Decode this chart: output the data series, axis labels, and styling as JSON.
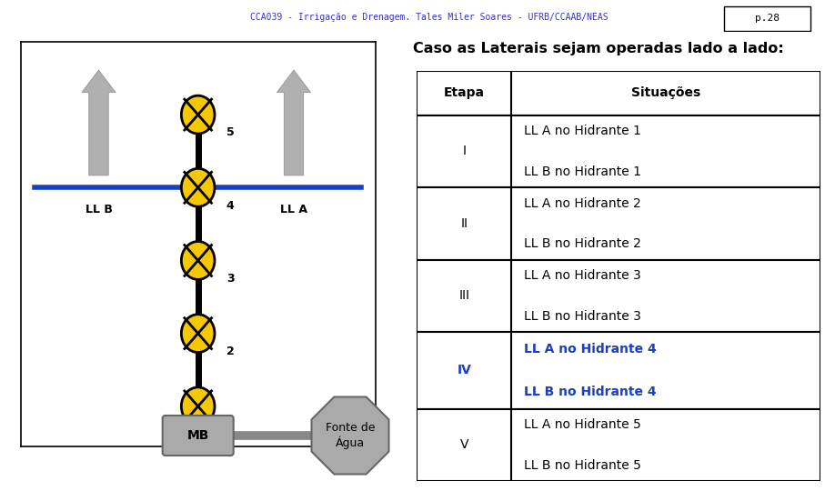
{
  "header_text": "CCA039 - Irrigação e Drenagem. Tales Miler Soares - UFRB/CCAAB/NEAS",
  "page_text": "p.28",
  "title": "Caso as Laterais sejam operadas lado a lado:",
  "background_color": "#ffffff",
  "lateral_color": "#1a3fbf",
  "gray_color": "#888888",
  "mb_box_color": "#aaaaaa",
  "hydrant_fill": "#f5c800",
  "table_rows": [
    {
      "etapa": "Etapa",
      "situacoes": "Situações",
      "header": true,
      "blue": false,
      "bold": false
    },
    {
      "etapa": "I",
      "sit1": "LL A no Hidrante 1",
      "sit2": "LL B no Hidrante 1",
      "bold": false,
      "blue": false
    },
    {
      "etapa": "II",
      "sit1": "LL A no Hidrante 2",
      "sit2": "LL B no Hidrante 2",
      "bold": false,
      "blue": false
    },
    {
      "etapa": "III",
      "sit1": "LL A no Hidrante 3",
      "sit2": "LL B no Hidrante 3",
      "bold": false,
      "blue": false
    },
    {
      "etapa": "IV",
      "sit1": "LL A no Hidrante 4",
      "sit2": "LL B no Hidrante 4",
      "bold": true,
      "blue": true
    },
    {
      "etapa": "V",
      "sit1": "LL A no Hidrante 5",
      "sit2": "LL B no Hidrante 5",
      "bold": false,
      "blue": false
    }
  ]
}
